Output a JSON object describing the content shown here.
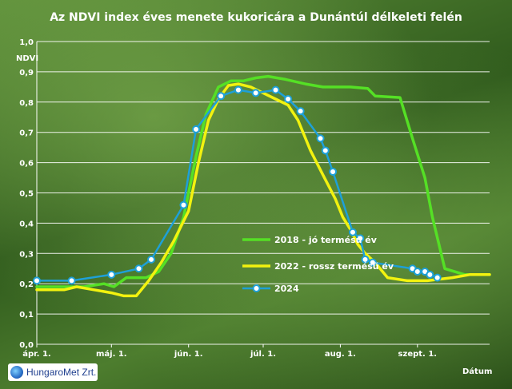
{
  "chart_data": {
    "type": "line",
    "title": "Az NDVI index éves menete kukoricára a Dunántúl délkeleti felén",
    "ylabel": "NDVI",
    "xlabel": "Dátum",
    "ylim": [
      0,
      1
    ],
    "yticks": [
      "0,0",
      "0,1",
      "0,2",
      "0,3",
      "0,4",
      "0,5",
      "0,6",
      "0,7",
      "0,8",
      "0,9",
      "1,0"
    ],
    "xlim": [
      "2024-04-01",
      "2024-09-30"
    ],
    "xticks": [
      {
        "date": "2024-04-01",
        "label": "ápr. 1."
      },
      {
        "date": "2024-05-01",
        "label": "máj. 1."
      },
      {
        "date": "2024-06-01",
        "label": "jún. 1."
      },
      {
        "date": "2024-07-01",
        "label": "júl. 1."
      },
      {
        "date": "2024-08-01",
        "label": "aug. 1."
      },
      {
        "date": "2024-09-01",
        "label": "szept. 1."
      }
    ],
    "grid": true,
    "legend": "right",
    "series": [
      {
        "name": "2018 - jó termésű év",
        "color": "#55e025",
        "markers": false,
        "points": [
          [
            "2024-04-01",
            0.19
          ],
          [
            "2024-04-10",
            0.19
          ],
          [
            "2024-04-20",
            0.19
          ],
          [
            "2024-04-28",
            0.2
          ],
          [
            "2024-05-02",
            0.19
          ],
          [
            "2024-05-07",
            0.22
          ],
          [
            "2024-05-15",
            0.22
          ],
          [
            "2024-05-20",
            0.24
          ],
          [
            "2024-05-25",
            0.3
          ],
          [
            "2024-05-30",
            0.42
          ],
          [
            "2024-06-04",
            0.62
          ],
          [
            "2024-06-08",
            0.76
          ],
          [
            "2024-06-13",
            0.85
          ],
          [
            "2024-06-18",
            0.87
          ],
          [
            "2024-06-23",
            0.87
          ],
          [
            "2024-06-28",
            0.88
          ],
          [
            "2024-07-03",
            0.885
          ],
          [
            "2024-07-10",
            0.875
          ],
          [
            "2024-07-18",
            0.86
          ],
          [
            "2024-07-25",
            0.85
          ],
          [
            "2024-08-05",
            0.85
          ],
          [
            "2024-08-12",
            0.845
          ],
          [
            "2024-08-15",
            0.82
          ],
          [
            "2024-08-25",
            0.815
          ],
          [
            "2024-08-30",
            0.68
          ],
          [
            "2024-09-04",
            0.55
          ],
          [
            "2024-09-07",
            0.42
          ],
          [
            "2024-09-12",
            0.25
          ],
          [
            "2024-09-20",
            0.23
          ],
          [
            "2024-09-30",
            0.23
          ]
        ]
      },
      {
        "name": "2022 - rossz termésű év",
        "color": "#f2f20f",
        "markers": false,
        "points": [
          [
            "2024-04-01",
            0.18
          ],
          [
            "2024-04-12",
            0.18
          ],
          [
            "2024-04-17",
            0.19
          ],
          [
            "2024-04-24",
            0.18
          ],
          [
            "2024-05-01",
            0.17
          ],
          [
            "2024-05-06",
            0.16
          ],
          [
            "2024-05-11",
            0.16
          ],
          [
            "2024-05-16",
            0.21
          ],
          [
            "2024-05-21",
            0.27
          ],
          [
            "2024-05-26",
            0.34
          ],
          [
            "2024-06-01",
            0.44
          ],
          [
            "2024-06-05",
            0.6
          ],
          [
            "2024-06-09",
            0.74
          ],
          [
            "2024-06-13",
            0.81
          ],
          [
            "2024-06-17",
            0.855
          ],
          [
            "2024-06-21",
            0.86
          ],
          [
            "2024-06-26",
            0.85
          ],
          [
            "2024-07-01",
            0.83
          ],
          [
            "2024-07-06",
            0.81
          ],
          [
            "2024-07-11",
            0.79
          ],
          [
            "2024-07-15",
            0.74
          ],
          [
            "2024-07-20",
            0.64
          ],
          [
            "2024-07-25",
            0.56
          ],
          [
            "2024-07-30",
            0.48
          ],
          [
            "2024-08-02",
            0.42
          ],
          [
            "2024-08-05",
            0.38
          ],
          [
            "2024-08-08",
            0.33
          ],
          [
            "2024-08-11",
            0.3
          ],
          [
            "2024-08-15",
            0.27
          ],
          [
            "2024-08-20",
            0.22
          ],
          [
            "2024-08-28",
            0.21
          ],
          [
            "2024-09-05",
            0.21
          ],
          [
            "2024-09-15",
            0.22
          ],
          [
            "2024-09-22",
            0.23
          ],
          [
            "2024-09-30",
            0.23
          ]
        ]
      },
      {
        "name": "2024",
        "color": "#1ea0d8",
        "markers": true,
        "points": [
          [
            "2024-04-01",
            0.21
          ],
          [
            "2024-04-15",
            0.21
          ],
          [
            "2024-05-01",
            0.23
          ],
          [
            "2024-05-12",
            0.25
          ],
          [
            "2024-05-17",
            0.28
          ],
          [
            "2024-05-30",
            0.46
          ],
          [
            "2024-06-04",
            0.71
          ],
          [
            "2024-06-14",
            0.82
          ],
          [
            "2024-06-21",
            0.84
          ],
          [
            "2024-06-28",
            0.83
          ],
          [
            "2024-07-06",
            0.84
          ],
          [
            "2024-07-11",
            0.81
          ],
          [
            "2024-07-16",
            0.77
          ],
          [
            "2024-07-24",
            0.68
          ],
          [
            "2024-07-26",
            0.64
          ],
          [
            "2024-07-29",
            0.57
          ],
          [
            "2024-08-06",
            0.37
          ],
          [
            "2024-08-09",
            0.35
          ],
          [
            "2024-08-11",
            0.28
          ],
          [
            "2024-08-14",
            0.27
          ],
          [
            "2024-08-30",
            0.25
          ],
          [
            "2024-09-01",
            0.24
          ],
          [
            "2024-09-04",
            0.24
          ],
          [
            "2024-09-06",
            0.23
          ],
          [
            "2024-09-09",
            0.22
          ]
        ]
      }
    ]
  },
  "logo": {
    "text": "HungaroMet Zrt."
  }
}
